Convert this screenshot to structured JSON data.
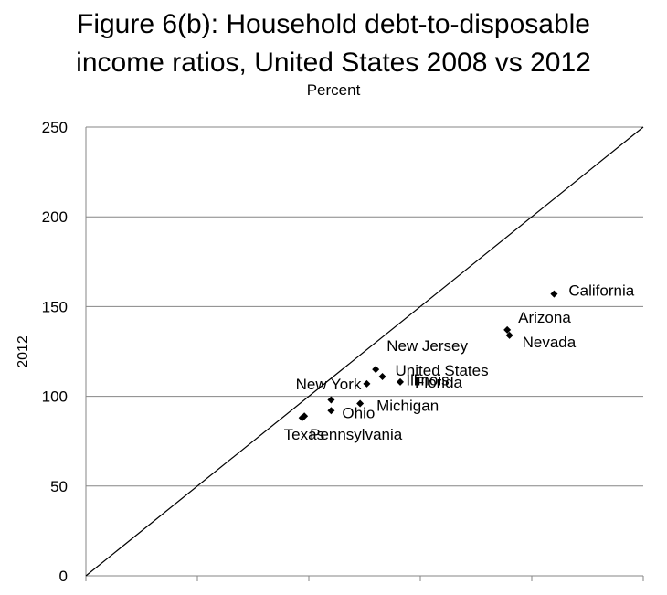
{
  "title_line1": "Figure 6(b): Household debt-to-disposable",
  "title_line2": "income ratios, United States 2008 vs 2012",
  "subtitle": "Percent",
  "chart_data": {
    "type": "scatter",
    "title": "Figure 6(b): Household debt-to-disposable income ratios, United States 2008 vs 2012",
    "subtitle": "Percent",
    "ylabel": "2012",
    "xlabel": "",
    "xlim": [
      0,
      250
    ],
    "ylim": [
      0,
      250
    ],
    "yticks": [
      0,
      50,
      100,
      150,
      200,
      250
    ],
    "grid": "horizontal",
    "reference_line": "y = x",
    "marker_color": "#000000",
    "points": [
      {
        "label": "California",
        "x": 210,
        "y": 157
      },
      {
        "label": "Arizona",
        "x": 189,
        "y": 137
      },
      {
        "label": "Nevada",
        "x": 190,
        "y": 134
      },
      {
        "label": "New Jersey",
        "x": 130,
        "y": 115
      },
      {
        "label": "United States",
        "x": 133,
        "y": 111
      },
      {
        "label": "Florida",
        "x": 141,
        "y": 108
      },
      {
        "label": "New York",
        "x": 126,
        "y": 107
      },
      {
        "label": "Illinois",
        "x": 110,
        "y": 98
      },
      {
        "label": "Michigan",
        "x": 123,
        "y": 96
      },
      {
        "label": "Ohio",
        "x": 110,
        "y": 92
      },
      {
        "label": "Pennsylvania",
        "x": 98,
        "y": 89
      },
      {
        "label": "Texas",
        "x": 97,
        "y": 88
      }
    ]
  }
}
